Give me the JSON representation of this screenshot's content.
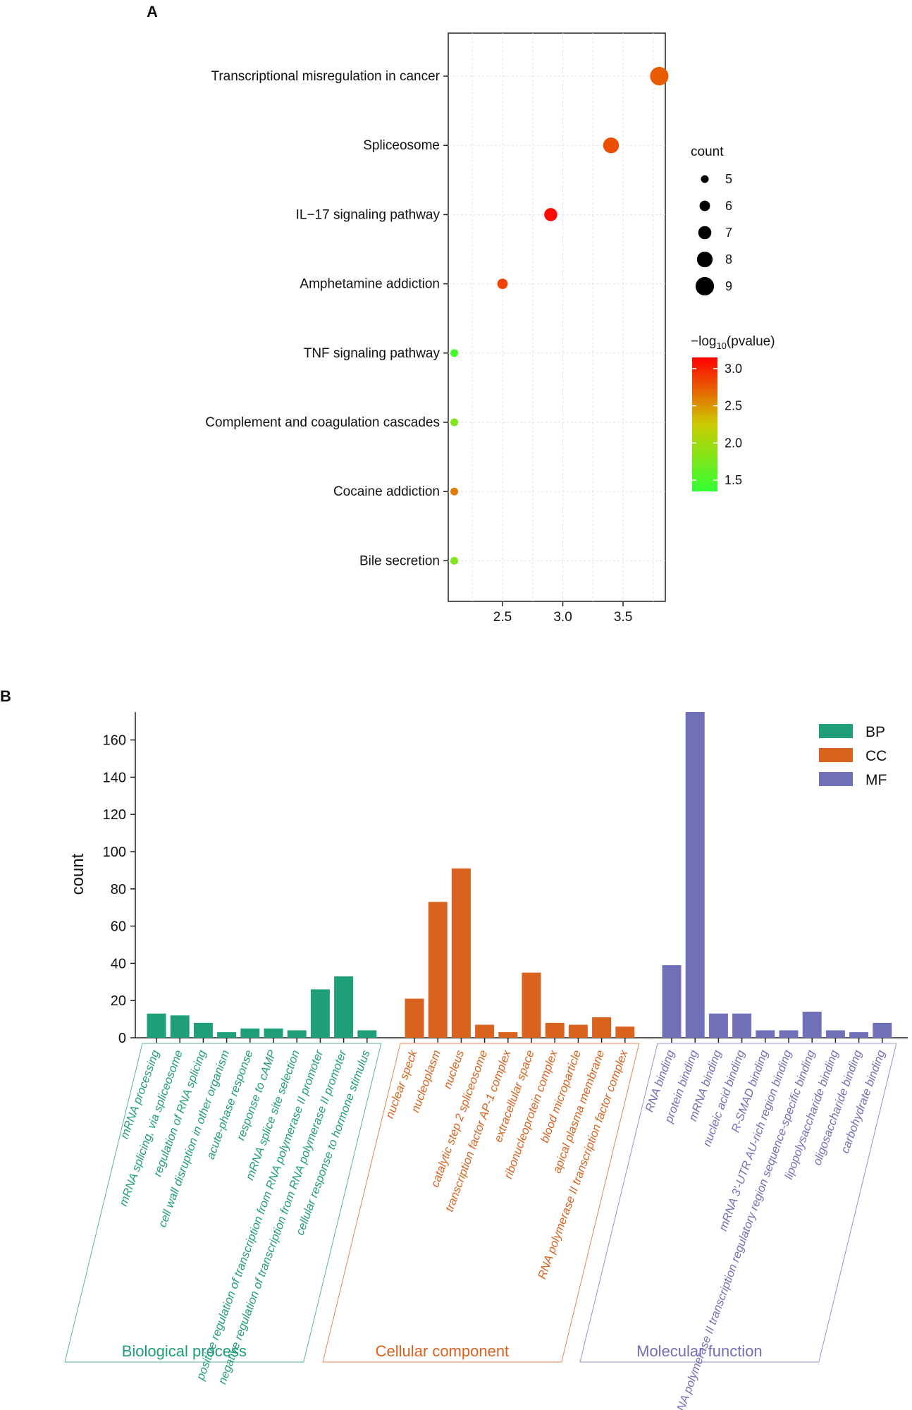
{
  "colors": {
    "BP": "#1f9e7a",
    "CC": "#d9621e",
    "MF": "#7070b8",
    "gradient_low": "#33ff33",
    "gradient_mid": "#cccc00",
    "gradient_high": "#ff0000",
    "axis": "#222222",
    "grid": "#e3e3e3"
  },
  "chart_data": [
    {
      "panel_label": "A",
      "type": "scatter",
      "title": "",
      "xlabel": "",
      "ylabel": "",
      "xlim": [
        2.05,
        3.85
      ],
      "xticks": [
        2.5,
        3.0,
        3.5
      ],
      "xtick_labels": [
        "2.5",
        "3.0",
        "3.5"
      ],
      "categories": [
        "Transcriptional misregulation in cancer",
        "Spliceosome",
        "IL−17 signaling pathway",
        "Amphetamine addiction",
        "TNF signaling pathway",
        "Complement and coagulation cascades",
        "Cocaine addiction",
        "Bile secretion"
      ],
      "x": [
        3.8,
        3.4,
        2.9,
        2.5,
        2.1,
        2.1,
        2.1,
        2.1
      ],
      "count": [
        9,
        8,
        7,
        6,
        5,
        5,
        5,
        5
      ],
      "neg_log10_pvalue": [
        2.75,
        2.8,
        3.1,
        2.85,
        1.45,
        1.8,
        2.6,
        1.8
      ],
      "size_legend": {
        "title": "count",
        "values": [
          5,
          6,
          7,
          8,
          9
        ],
        "labels": [
          "5",
          "6",
          "7",
          "8",
          "9"
        ]
      },
      "color_legend": {
        "title_main": "−log",
        "title_sub": "10",
        "title_rest": "(pvalue)",
        "range": [
          1.35,
          3.15
        ],
        "ticks": [
          3.0,
          2.5,
          2.0,
          1.5
        ],
        "tick_labels": [
          "3.0",
          "2.5",
          "2.0",
          "1.5"
        ]
      },
      "grid": true
    },
    {
      "panel_label": "B",
      "type": "bar",
      "title": "",
      "xlabel": "",
      "ylabel": "count",
      "ylim": [
        0,
        175
      ],
      "yticks": [
        0,
        20,
        40,
        60,
        80,
        100,
        120,
        140,
        160
      ],
      "ytick_labels": [
        "0",
        "20",
        "40",
        "60",
        "80",
        "100",
        "120",
        "140",
        "160"
      ],
      "legend": {
        "position": "top-right",
        "entries": [
          {
            "key": "BP",
            "label": "BP"
          },
          {
            "key": "CC",
            "label": "CC"
          },
          {
            "key": "MF",
            "label": "MF"
          }
        ]
      },
      "groups": [
        {
          "key": "BP",
          "name": "Biological process",
          "categories": [
            "mRNA processing",
            "mRNA splicing, via spliceosome",
            "regulation of RNA splicing",
            "cell wall disruption in other organism",
            "acute-phase response",
            "response to cAMP",
            "mRNA splice site selection",
            "positive regulation of transcription from RNA polymerase II promoter",
            "negative regulation of transcription from RNA polymerase II promoter",
            "cellular response to hormone stimulus"
          ],
          "values": [
            13,
            12,
            8,
            3,
            5,
            5,
            4,
            26,
            33,
            4
          ]
        },
        {
          "key": "CC",
          "name": "Cellular component",
          "categories": [
            "nuclear speck",
            "nucleoplasm",
            "nucleus",
            "catalytic step 2 spliceosome",
            "transcription factor AP-1 complex",
            "extracellular space",
            "ribonucleoprotein complex",
            "blood microparticle",
            "apical plasma membrane",
            "RNA polymerase II transcription factor complex"
          ],
          "values": [
            21,
            73,
            91,
            7,
            3,
            35,
            8,
            7,
            11,
            6
          ]
        },
        {
          "key": "MF",
          "name": "Molecular function",
          "categories": [
            "RNA binding",
            "protein binding",
            "mRNA binding",
            "nucleic acid binding",
            "R-SMAD binding",
            "mRNA 3'-UTR AU-rich region binding",
            "RNA polymerase II transcription regulatory region sequence-specific binding",
            "lipopolysaccharide binding",
            "oligosaccharide binding",
            "carbohydrate binding"
          ],
          "values": [
            39,
            175,
            13,
            13,
            4,
            4,
            14,
            4,
            3,
            8
          ]
        }
      ]
    }
  ]
}
